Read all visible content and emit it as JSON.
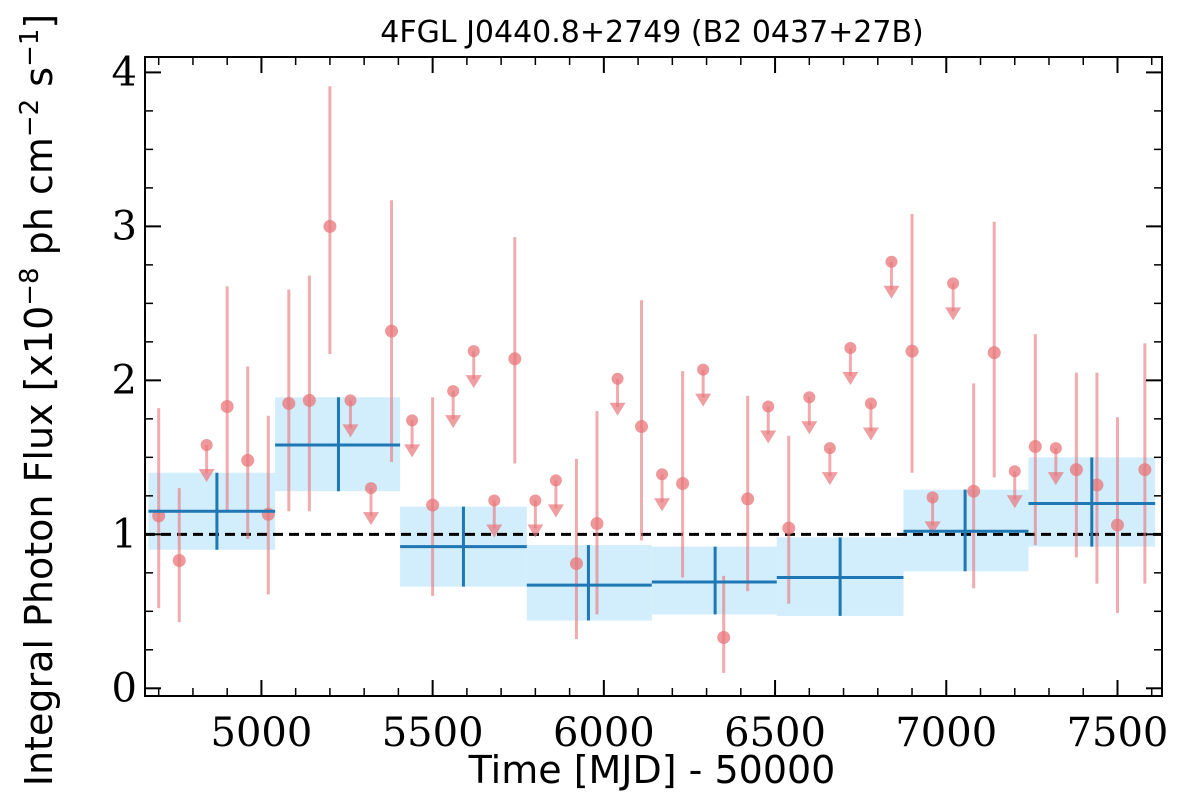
{
  "chart_data": {
    "type": "scatter",
    "title": "4FGL J0440.8+2749 (B2 0437+27B)",
    "xlabel": "Time [MJD] - 50000",
    "ylabel": "Integral Photon Flux [x10",
    "ylabel_exp1": "−8",
    "ylabel_mid": " ph cm",
    "ylabel_exp2": "−2",
    "ylabel_end": " s",
    "ylabel_exp3": "−1",
    "ylabel_close": "]",
    "xlim": [
      4660,
      7630
    ],
    "ylim": [
      -0.05,
      4.1
    ],
    "x_ticks": [
      5000,
      5500,
      6000,
      6500,
      7000,
      7500
    ],
    "y_ticks": [
      0,
      1,
      2,
      3,
      4
    ],
    "mean_flux": 1.0,
    "colors": {
      "points": "#e8757a",
      "bins": "#1f77b4",
      "bin_fill": "#cdebfb",
      "mean_line": "#000000"
    },
    "points": [
      {
        "x": 4700,
        "y": 1.12,
        "lo": 0.52,
        "hi": 1.82
      },
      {
        "x": 4760,
        "y": 0.83,
        "lo": 0.43,
        "hi": 1.3
      },
      {
        "x": 4900,
        "y": 1.83,
        "lo": 1.15,
        "hi": 2.61
      },
      {
        "x": 4960,
        "y": 1.48,
        "lo": 0.97,
        "hi": 2.09
      },
      {
        "x": 5020,
        "y": 1.13,
        "lo": 0.61,
        "hi": 1.77
      },
      {
        "x": 5080,
        "y": 1.85,
        "lo": 1.15,
        "hi": 2.59
      },
      {
        "x": 5140,
        "y": 1.87,
        "lo": 1.15,
        "hi": 2.68
      },
      {
        "x": 5200,
        "y": 3.0,
        "lo": 2.17,
        "hi": 3.91
      },
      {
        "x": 5380,
        "y": 2.32,
        "lo": 1.47,
        "hi": 3.17
      },
      {
        "x": 5500,
        "y": 1.19,
        "lo": 0.6,
        "hi": 1.89
      },
      {
        "x": 5740,
        "y": 2.14,
        "lo": 1.46,
        "hi": 2.93
      },
      {
        "x": 5920,
        "y": 0.81,
        "lo": 0.32,
        "hi": 1.49
      },
      {
        "x": 5980,
        "y": 1.07,
        "lo": 0.48,
        "hi": 1.8
      },
      {
        "x": 6110,
        "y": 1.7,
        "lo": 0.96,
        "hi": 2.52
      },
      {
        "x": 6230,
        "y": 1.33,
        "lo": 0.72,
        "hi": 2.06
      },
      {
        "x": 6350,
        "y": 0.33,
        "lo": 0.1,
        "hi": 0.73
      },
      {
        "x": 6420,
        "y": 1.23,
        "lo": 0.63,
        "hi": 1.9
      },
      {
        "x": 6540,
        "y": 1.04,
        "lo": 0.55,
        "hi": 1.64
      },
      {
        "x": 6900,
        "y": 2.19,
        "lo": 1.4,
        "hi": 3.08
      },
      {
        "x": 7080,
        "y": 1.28,
        "lo": 0.65,
        "hi": 1.98
      },
      {
        "x": 7140,
        "y": 2.18,
        "lo": 1.37,
        "hi": 3.03
      },
      {
        "x": 7260,
        "y": 1.57,
        "lo": 0.93,
        "hi": 2.3
      },
      {
        "x": 7380,
        "y": 1.42,
        "lo": 0.85,
        "hi": 2.05
      },
      {
        "x": 7440,
        "y": 1.32,
        "lo": 0.68,
        "hi": 2.05
      },
      {
        "x": 7500,
        "y": 1.06,
        "lo": 0.49,
        "hi": 1.76
      },
      {
        "x": 7580,
        "y": 1.42,
        "lo": 0.68,
        "hi": 2.24
      }
    ],
    "upper_limits": [
      {
        "x": 4840,
        "y": 1.58
      },
      {
        "x": 5260,
        "y": 1.87
      },
      {
        "x": 5320,
        "y": 1.3
      },
      {
        "x": 5440,
        "y": 1.74
      },
      {
        "x": 5560,
        "y": 1.93
      },
      {
        "x": 5620,
        "y": 2.19
      },
      {
        "x": 5680,
        "y": 1.22
      },
      {
        "x": 5800,
        "y": 1.22
      },
      {
        "x": 5860,
        "y": 1.35
      },
      {
        "x": 6040,
        "y": 2.01
      },
      {
        "x": 6170,
        "y": 1.39
      },
      {
        "x": 6290,
        "y": 2.07
      },
      {
        "x": 6480,
        "y": 1.83
      },
      {
        "x": 6600,
        "y": 1.89
      },
      {
        "x": 6660,
        "y": 1.56
      },
      {
        "x": 6720,
        "y": 2.21
      },
      {
        "x": 6780,
        "y": 1.85
      },
      {
        "x": 6840,
        "y": 2.77
      },
      {
        "x": 6960,
        "y": 1.24
      },
      {
        "x": 7020,
        "y": 2.63
      },
      {
        "x": 7200,
        "y": 1.41
      },
      {
        "x": 7320,
        "y": 1.56
      }
    ],
    "bins": [
      {
        "x0": 4670,
        "x1": 5040,
        "x": 4870,
        "y": 1.15,
        "lo": 0.9,
        "hi": 1.4
      },
      {
        "x0": 5040,
        "x1": 5405,
        "x": 5225,
        "y": 1.58,
        "lo": 1.28,
        "hi": 1.89
      },
      {
        "x0": 5405,
        "x1": 5775,
        "x": 5590,
        "y": 0.92,
        "lo": 0.66,
        "hi": 1.18
      },
      {
        "x0": 5775,
        "x1": 6140,
        "x": 5955,
        "y": 0.67,
        "lo": 0.44,
        "hi": 0.93
      },
      {
        "x0": 6140,
        "x1": 6505,
        "x": 6325,
        "y": 0.69,
        "lo": 0.48,
        "hi": 0.92
      },
      {
        "x0": 6505,
        "x1": 6875,
        "x": 6690,
        "y": 0.72,
        "lo": 0.47,
        "hi": 0.98
      },
      {
        "x0": 6875,
        "x1": 7240,
        "x": 7055,
        "y": 1.02,
        "lo": 0.76,
        "hi": 1.29
      },
      {
        "x0": 7240,
        "x1": 7610,
        "x": 7425,
        "y": 1.2,
        "lo": 0.92,
        "hi": 1.5
      }
    ]
  }
}
